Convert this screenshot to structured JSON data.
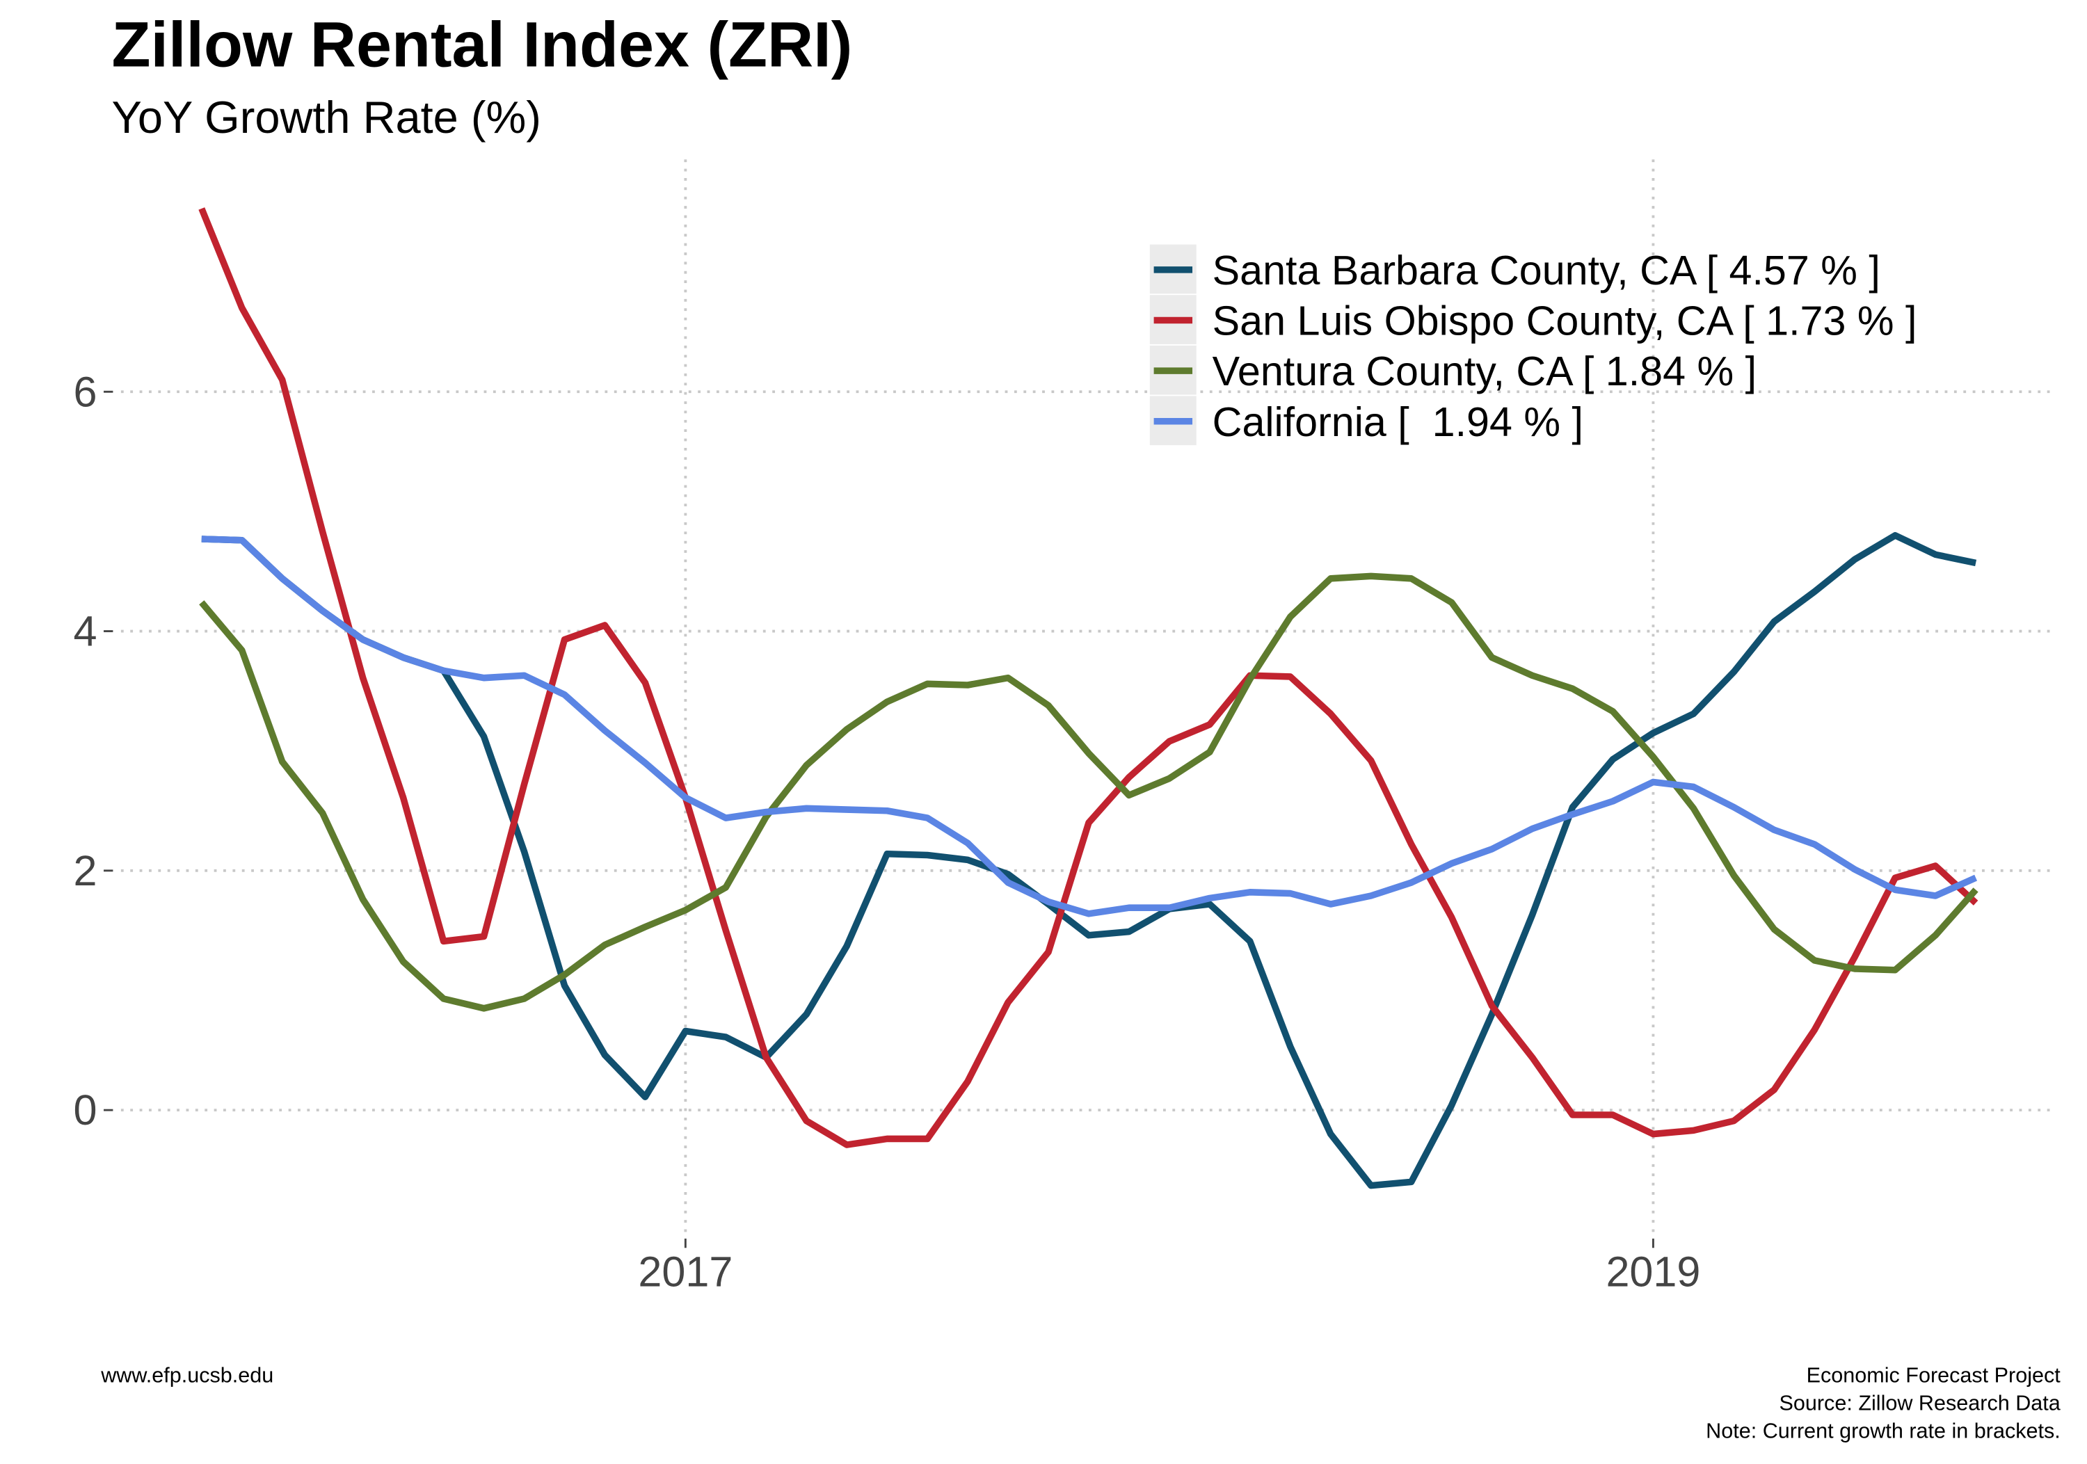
{
  "chart_data": {
    "type": "line",
    "title": "Zillow Rental Index (ZRI)",
    "subtitle": "YoY Growth Rate (%)",
    "caption_left": "www.efp.ucsb.edu",
    "caption_right": [
      "Economic Forecast Project",
      "Source: Zillow Research Data",
      "Note: Current growth rate in brackets."
    ],
    "x": [
      "2016-01",
      "2016-02",
      "2016-03",
      "2016-04",
      "2016-05",
      "2016-06",
      "2016-07",
      "2016-08",
      "2016-09",
      "2016-10",
      "2016-11",
      "2016-12",
      "2017-01",
      "2017-02",
      "2017-03",
      "2017-04",
      "2017-05",
      "2017-06",
      "2017-07",
      "2017-08",
      "2017-09",
      "2017-10",
      "2017-11",
      "2017-12",
      "2018-01",
      "2018-02",
      "2018-03",
      "2018-04",
      "2018-05",
      "2018-06",
      "2018-07",
      "2018-08",
      "2018-09",
      "2018-10",
      "2018-11",
      "2018-12",
      "2019-01",
      "2019-02",
      "2019-03",
      "2019-04",
      "2019-05",
      "2019-06",
      "2019-07",
      "2019-08",
      "2019-09"
    ],
    "xlim": [
      "2015-11",
      "2019-11"
    ],
    "xticks": [
      {
        "value": "2017-01",
        "label": "2017"
      },
      {
        "value": "2019-01",
        "label": "2019"
      }
    ],
    "ylim": [
      -1.04,
      7.94
    ],
    "yticks": [
      0,
      2,
      4,
      6
    ],
    "grid": true,
    "legend_position": "top-right",
    "series": [
      {
        "name": "Santa Barbara County, CA [ 4.57 % ]",
        "color": "#11506f",
        "values": [
          4.77,
          4.76,
          4.44,
          4.17,
          3.93,
          3.78,
          3.67,
          3.12,
          2.16,
          1.04,
          0.46,
          0.11,
          0.66,
          0.61,
          0.44,
          0.8,
          1.37,
          2.14,
          2.13,
          2.09,
          1.97,
          1.72,
          1.46,
          1.49,
          1.68,
          1.72,
          1.41,
          0.53,
          -0.2,
          -0.63,
          -0.6,
          0.04,
          0.8,
          1.63,
          2.53,
          2.93,
          3.15,
          3.31,
          3.66,
          4.08,
          4.33,
          4.6,
          4.8,
          4.64,
          4.57
        ]
      },
      {
        "name": "San Luis Obispo County, CA [ 1.73 % ]",
        "color": "#c1232f",
        "values": [
          7.53,
          6.7,
          6.1,
          4.83,
          3.61,
          2.61,
          1.41,
          1.45,
          2.72,
          3.93,
          4.05,
          3.57,
          2.61,
          1.5,
          0.44,
          -0.09,
          -0.29,
          -0.24,
          -0.24,
          0.24,
          0.9,
          1.32,
          2.4,
          2.78,
          3.08,
          3.22,
          3.63,
          3.62,
          3.31,
          2.92,
          2.22,
          1.61,
          0.87,
          0.44,
          -0.04,
          -0.04,
          -0.2,
          -0.17,
          -0.09,
          0.17,
          0.67,
          1.28,
          1.94,
          2.04,
          1.73
        ]
      },
      {
        "name": "Ventura County, CA [ 1.84 % ]",
        "color": "#5e7b2e",
        "values": [
          4.24,
          3.84,
          2.91,
          2.48,
          1.76,
          1.24,
          0.93,
          0.85,
          0.93,
          1.13,
          1.38,
          1.53,
          1.67,
          1.86,
          2.45,
          2.88,
          3.18,
          3.41,
          3.56,
          3.55,
          3.61,
          3.38,
          2.98,
          2.63,
          2.77,
          2.99,
          3.6,
          4.12,
          4.44,
          4.46,
          4.44,
          4.24,
          3.78,
          3.63,
          3.52,
          3.33,
          2.95,
          2.52,
          1.96,
          1.51,
          1.25,
          1.18,
          1.17,
          1.46,
          1.84
        ]
      },
      {
        "name": "California [  1.94 % ]",
        "color": "#5b85e4",
        "values": [
          4.77,
          4.76,
          4.44,
          4.17,
          3.93,
          3.78,
          3.67,
          3.61,
          3.63,
          3.47,
          3.17,
          2.9,
          2.61,
          2.44,
          2.49,
          2.52,
          2.51,
          2.5,
          2.44,
          2.23,
          1.9,
          1.74,
          1.64,
          1.69,
          1.69,
          1.77,
          1.82,
          1.81,
          1.72,
          1.79,
          1.9,
          2.06,
          2.18,
          2.35,
          2.47,
          2.58,
          2.74,
          2.7,
          2.53,
          2.34,
          2.22,
          2.01,
          1.84,
          1.79,
          1.94
        ]
      }
    ]
  }
}
